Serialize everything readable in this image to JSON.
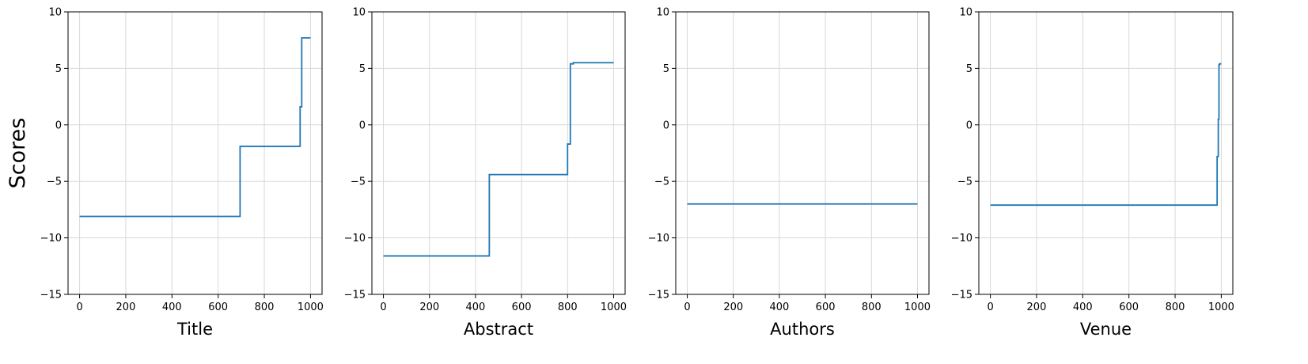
{
  "chart_data": [
    {
      "type": "line",
      "title": "",
      "xlabel": "Title",
      "ylabel": "Scores",
      "xlim": [
        -50,
        1050
      ],
      "ylim": [
        -15,
        10
      ],
      "xticks": [
        0,
        200,
        400,
        600,
        800,
        1000
      ],
      "yticks": [
        -15,
        -10,
        -5,
        0,
        5,
        10
      ],
      "xtick_labels": [
        "0",
        "200",
        "400",
        "600",
        "800",
        "1000"
      ],
      "ytick_labels": [
        "−15",
        "−10",
        "−5",
        "0",
        "5",
        "10"
      ],
      "grid": true,
      "color": "#1f77b4",
      "series": [
        {
          "x": [
            0,
            695,
            695,
            955,
            955,
            962,
            962,
            1000
          ],
          "y": [
            -8.1,
            -8.1,
            -1.9,
            -1.9,
            1.6,
            1.6,
            7.7,
            7.7
          ]
        }
      ]
    },
    {
      "type": "line",
      "title": "",
      "xlabel": "Abstract",
      "xlim": [
        -50,
        1050
      ],
      "ylim": [
        -15,
        10
      ],
      "xticks": [
        0,
        200,
        400,
        600,
        800,
        1000
      ],
      "yticks": [
        -15,
        -10,
        -5,
        0,
        5,
        10
      ],
      "xtick_labels": [
        "0",
        "200",
        "400",
        "600",
        "800",
        "1000"
      ],
      "ytick_labels": [
        "−15",
        "−10",
        "−5",
        "0",
        "5",
        "10"
      ],
      "grid": true,
      "color": "#1f77b4",
      "series": [
        {
          "x": [
            0,
            460,
            460,
            800,
            800,
            812,
            812,
            825,
            825,
            1000
          ],
          "y": [
            -11.6,
            -11.6,
            -4.4,
            -4.4,
            -1.7,
            -1.7,
            5.4,
            5.4,
            5.5,
            5.5
          ]
        }
      ]
    },
    {
      "type": "line",
      "title": "",
      "xlabel": "Authors",
      "xlim": [
        -50,
        1050
      ],
      "ylim": [
        -15,
        10
      ],
      "xticks": [
        0,
        200,
        400,
        600,
        800,
        1000
      ],
      "yticks": [
        -15,
        -10,
        -5,
        0,
        5,
        10
      ],
      "xtick_labels": [
        "0",
        "200",
        "400",
        "600",
        "800",
        "1000"
      ],
      "ytick_labels": [
        "−15",
        "−10",
        "−5",
        "0",
        "5",
        "10"
      ],
      "grid": true,
      "color": "#1f77b4",
      "series": [
        {
          "x": [
            0,
            1000
          ],
          "y": [
            -7.0,
            -7.0
          ]
        }
      ]
    },
    {
      "type": "line",
      "title": "",
      "xlabel": "Venue",
      "xlim": [
        -50,
        1050
      ],
      "ylim": [
        -15,
        10
      ],
      "xticks": [
        0,
        200,
        400,
        600,
        800,
        1000
      ],
      "yticks": [
        -15,
        -10,
        -5,
        0,
        5,
        10
      ],
      "xtick_labels": [
        "0",
        "200",
        "400",
        "600",
        "800",
        "1000"
      ],
      "ytick_labels": [
        "−15",
        "−10",
        "−5",
        "0",
        "5",
        "10"
      ],
      "grid": true,
      "color": "#1f77b4",
      "series": [
        {
          "x": [
            0,
            982,
            982,
            987,
            987,
            990,
            990,
            992,
            992,
            1000
          ],
          "y": [
            -7.1,
            -7.1,
            -2.8,
            -2.8,
            0.5,
            0.5,
            5.3,
            5.3,
            5.4,
            5.4
          ]
        }
      ]
    }
  ]
}
